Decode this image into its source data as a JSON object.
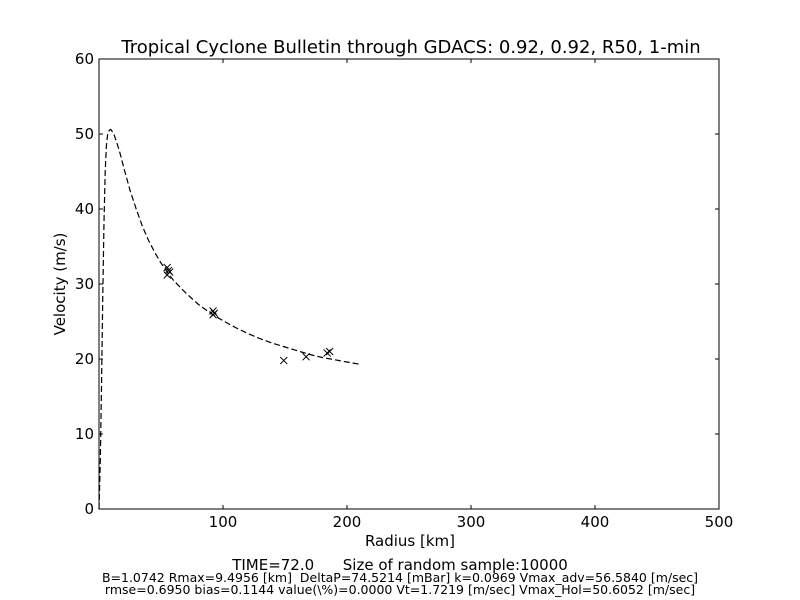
{
  "chart_data": {
    "type": "scatter",
    "title": "Tropical Cyclone Bulletin through GDACS: 0.92, 0.92, R50, 1-min",
    "xlabel": "Radius [km]",
    "ylabel": "Velocity (m/s)",
    "xlim": [
      0,
      500
    ],
    "ylim": [
      0,
      60
    ],
    "x_ticks": [
      100,
      200,
      300,
      400,
      500
    ],
    "y_ticks": [
      0,
      10,
      20,
      30,
      40,
      50,
      60
    ],
    "grid": false,
    "series": [
      {
        "style": "dashed-line",
        "color": "#000000",
        "x": [
          0,
          1,
          2,
          3,
          4,
          5,
          6,
          7,
          8,
          9,
          9.5,
          10,
          12,
          14,
          16,
          18,
          20,
          25,
          30,
          35,
          40,
          45,
          50,
          55,
          60,
          70,
          80,
          90,
          100,
          110,
          120,
          130,
          140,
          150,
          160,
          170,
          180,
          190,
          200,
          210
        ],
        "y": [
          0,
          6,
          16,
          28,
          38,
          45,
          48.5,
          50,
          50.4,
          50.6,
          50.6,
          50.5,
          50,
          49,
          48,
          46.8,
          45.5,
          42.5,
          40,
          37.7,
          35.8,
          34.2,
          32.8,
          31.6,
          30.5,
          28.8,
          27.3,
          26.1,
          25.1,
          24.2,
          23.4,
          22.7,
          22.1,
          21.6,
          21.1,
          20.6,
          20.2,
          19.9,
          19.6,
          19.3
        ]
      },
      {
        "style": "x-markers",
        "color": "#000000",
        "x": [
          55,
          56,
          57,
          55,
          92,
          93,
          92,
          149,
          167,
          184,
          186
        ],
        "y": [
          32.2,
          31.8,
          31.6,
          31.2,
          26.4,
          26.1,
          25.9,
          19.8,
          20.3,
          20.8,
          21.0
        ]
      }
    ]
  },
  "footer": {
    "time_line": "TIME=72.0      Size of random sample:10000",
    "params_line": "B=1.0742 Rmax=9.4956 [km]  DeltaP=74.5214 [mBar] k=0.0969 Vmax_adv=56.5840 [m/sec]",
    "stats_line": "rmse=0.6950 bias=0.1144 value(\\%)=0.0000 Vt=1.7219 [m/sec] Vmax_Hol=50.6052 [m/sec]"
  }
}
